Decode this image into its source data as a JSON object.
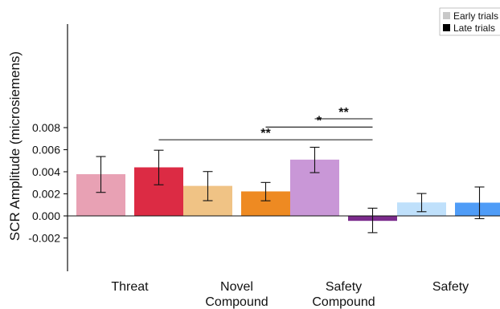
{
  "chart_data": {
    "type": "bar",
    "title": "",
    "xlabel": "",
    "ylabel": "SCR Amplitude (microsiemens)",
    "ylim": [
      -0.0025,
      0.0085
    ],
    "yticks": [
      -0.002,
      0.0,
      0.002,
      0.004,
      0.006,
      0.008
    ],
    "ytick_labels": [
      "-0.002",
      "0.000",
      "0.002",
      "0.004",
      "0.006",
      "0.008"
    ],
    "grid": false,
    "legend_placement": "top-right",
    "legend": [
      {
        "label": "Early trials",
        "color": "#c8c8c8"
      },
      {
        "label": "Late trials",
        "color": "#000000"
      }
    ],
    "categories": [
      {
        "label_lines": [
          "Threat"
        ]
      },
      {
        "label_lines": [
          "Novel",
          "Compound"
        ]
      },
      {
        "label_lines": [
          "Safety",
          "Compound"
        ]
      },
      {
        "label_lines": [
          "Safety"
        ]
      }
    ],
    "bars": [
      {
        "category": 0,
        "trial": "Early trials",
        "value": 0.00378,
        "err_low": 0.00213,
        "err_high": 0.00538,
        "color": "#e8a1b4"
      },
      {
        "category": 0,
        "trial": "Late trials",
        "value": 0.0044,
        "err_low": 0.00282,
        "err_high": 0.00595,
        "color": "#dc2b44"
      },
      {
        "category": 1,
        "trial": "Early trials",
        "value": 0.00272,
        "err_low": 0.00138,
        "err_high": 0.00402,
        "color": "#f0c385"
      },
      {
        "category": 1,
        "trial": "Late trials",
        "value": 0.00222,
        "err_low": 0.00137,
        "err_high": 0.00303,
        "color": "#ee8a22"
      },
      {
        "category": 2,
        "trial": "Early trials",
        "value": 0.0051,
        "err_low": 0.00392,
        "err_high": 0.00622,
        "color": "#c997d7"
      },
      {
        "category": 2,
        "trial": "Late trials",
        "value": -0.00045,
        "err_low": -0.00152,
        "err_high": 0.0007,
        "color": "#7b2b8c"
      },
      {
        "category": 3,
        "trial": "Early trials",
        "value": 0.00122,
        "err_low": 0.00038,
        "err_high": 0.00203,
        "color": "#bfe0fb"
      },
      {
        "category": 3,
        "trial": "Late trials",
        "value": 0.0012,
        "err_low": -0.00025,
        "err_high": 0.00262,
        "color": "#4f9cf7"
      }
    ],
    "significance": [
      {
        "from_bar": 1,
        "to_bar": 5,
        "y": 0.0069,
        "label": "**"
      },
      {
        "from_bar": 3,
        "to_bar": 5,
        "y": 0.00805,
        "label": "*"
      },
      {
        "from_bar": 4,
        "to_bar": 5,
        "y": 0.0088,
        "label": "**"
      }
    ]
  }
}
